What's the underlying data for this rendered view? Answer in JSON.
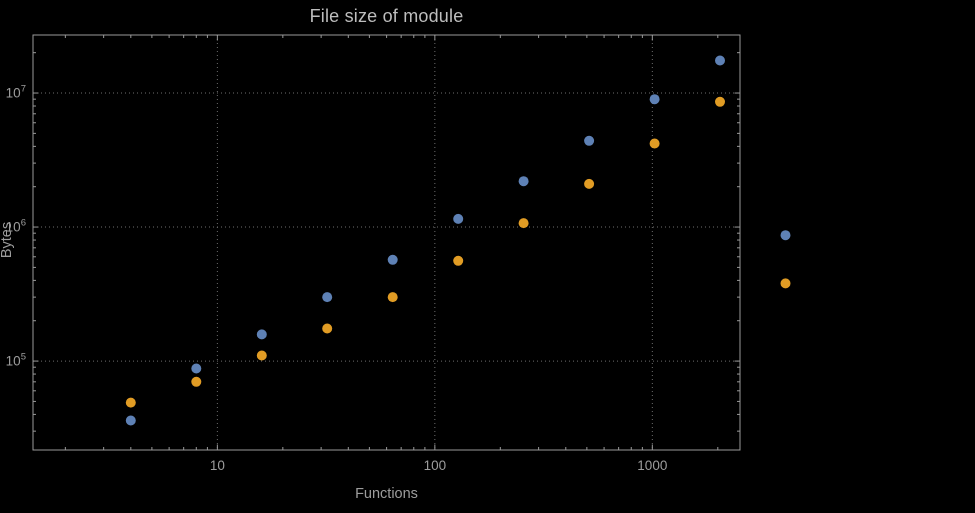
{
  "chart_data": {
    "type": "scatter",
    "title": "File size of module",
    "xlabel": "Functions",
    "ylabel": "Bytes",
    "xscale": "log",
    "yscale": "log",
    "xlim": [
      1.42,
      2530
    ],
    "ylim": [
      21700,
      27100000
    ],
    "grid": "dotted lines at decade ticks",
    "legend": "none",
    "frame": true,
    "x": [
      4,
      8,
      16,
      32,
      64,
      128,
      256,
      512,
      1024,
      2048,
      4096
    ],
    "series": [
      {
        "name": "series-1-blue",
        "color": "#5e81b5",
        "values": [
          36000,
          88000,
          158000,
          300000,
          570000,
          1150000,
          2200000,
          4400000,
          9000000,
          17500000,
          870000
        ]
      },
      {
        "name": "series-2-orange",
        "color": "#e19c24",
        "values": [
          49000,
          70000,
          110000,
          175000,
          300000,
          560000,
          1070000,
          2100000,
          4200000,
          8600000,
          380000
        ]
      }
    ],
    "x_tick_values": [
      10,
      100,
      1000
    ],
    "x_tick_labels": [
      "10",
      "100",
      "1000"
    ],
    "y_tick_values": [
      100000,
      1000000,
      10000000
    ],
    "y_tick_base": "10",
    "y_tick_exponents": [
      "5",
      "6",
      "7"
    ],
    "point_radius": 5
  },
  "colors": {
    "background": "#000000",
    "frame": "#9a9a9a",
    "grid": "#6e6e6e",
    "tick_text": "#9d9d9d",
    "title_text": "#bdbdbd",
    "series1": "#5e81b5",
    "series2": "#e19c24"
  }
}
